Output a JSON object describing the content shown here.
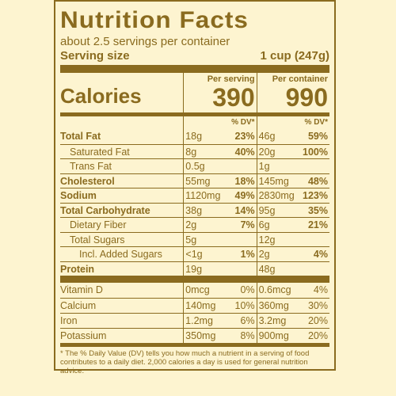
{
  "title": "Nutrition Facts",
  "servings_per_container": "about 2.5 servings per container",
  "serving_size_label": "Serving size",
  "serving_size_value": "1 cup (247g)",
  "columns": {
    "per_serving": "Per serving",
    "per_container": "Per container"
  },
  "calories": {
    "label": "Calories",
    "per_serving": "390",
    "per_container": "990"
  },
  "dv_header": "% DV*",
  "nutrients": [
    {
      "name": "Total Fat",
      "serving_amount": "18g",
      "serving_dv": "23%",
      "container_amount": "46g",
      "container_dv": "59%"
    },
    {
      "name": "Saturated Fat",
      "serving_amount": "8g",
      "serving_dv": "40%",
      "container_amount": "20g",
      "container_dv": "100%"
    },
    {
      "name": "Trans Fat",
      "serving_amount": "0.5g",
      "serving_dv": "",
      "container_amount": "1g",
      "container_dv": ""
    },
    {
      "name": "Cholesterol",
      "serving_amount": "55mg",
      "serving_dv": "18%",
      "container_amount": "145mg",
      "container_dv": "48%"
    },
    {
      "name": "Sodium",
      "serving_amount": "1120mg",
      "serving_dv": "49%",
      "container_amount": "2830mg",
      "container_dv": "123%"
    },
    {
      "name": "Total Carbohydrate",
      "serving_amount": "38g",
      "serving_dv": "14%",
      "container_amount": "95g",
      "container_dv": "35%"
    },
    {
      "name": "Dietary Fiber",
      "serving_amount": "2g",
      "serving_dv": "7%",
      "container_amount": "6g",
      "container_dv": "21%"
    },
    {
      "name": "Total Sugars",
      "serving_amount": "5g",
      "serving_dv": "",
      "container_amount": "12g",
      "container_dv": ""
    },
    {
      "name": "Incl. Added Sugars",
      "serving_amount": "<1g",
      "serving_dv": "1%",
      "container_amount": "2g",
      "container_dv": "4%"
    },
    {
      "name": "Protein",
      "serving_amount": "19g",
      "serving_dv": "",
      "container_amount": "48g",
      "container_dv": ""
    }
  ],
  "vitamins": [
    {
      "name": "Vitamin D",
      "serving_amount": "0mcg",
      "serving_dv": "0%",
      "container_amount": "0.6mcg",
      "container_dv": "4%"
    },
    {
      "name": "Calcium",
      "serving_amount": "140mg",
      "serving_dv": "10%",
      "container_amount": "360mg",
      "container_dv": "30%"
    },
    {
      "name": "Iron",
      "serving_amount": "1.2mg",
      "serving_dv": "6%",
      "container_amount": "3.2mg",
      "container_dv": "20%"
    },
    {
      "name": "Potassium",
      "serving_amount": "350mg",
      "serving_dv": "8%",
      "container_amount": "900mg",
      "container_dv": "20%"
    }
  ],
  "footnote": "* The % Daily Value (DV) tells you how much a nutrient in a serving of food contributes to a daily diet. 2,000 calories a day is used for general nutrition advice.",
  "colors": {
    "ink": "#8a6b1f",
    "background": "#fdf4d0"
  }
}
